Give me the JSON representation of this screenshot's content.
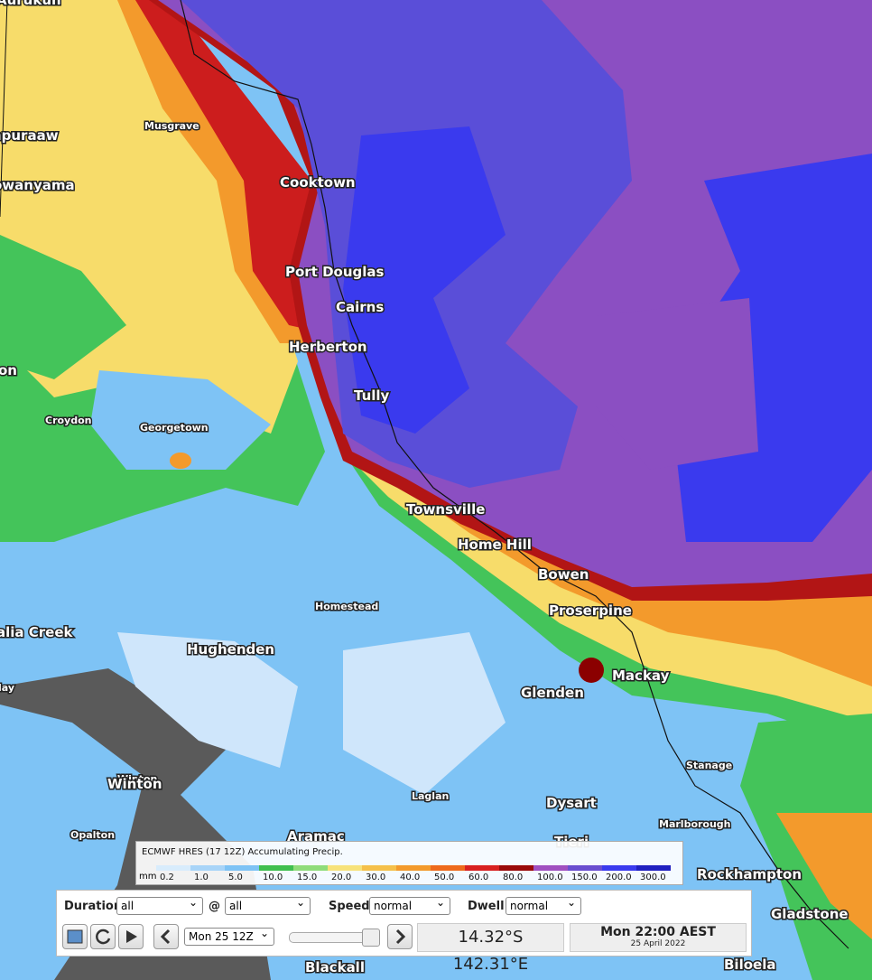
{
  "places": [
    "Aurukun",
    "mpuraaw",
    "owanyama",
    "Musgrave",
    "Cooktown",
    "Port Douglas",
    "Cairns",
    "Herberton",
    "on",
    "Tully",
    "Croydon",
    "Georgetown",
    "Townsville",
    "Home Hill",
    "Bowen",
    "Proserpine",
    "Homestead",
    "alia Creek",
    "Hughenden",
    "Mackay",
    "Glenden",
    "lay",
    "Stanage",
    "Winton",
    "Winton",
    "Laglan",
    "Dysart",
    "Opalton",
    "Marlborough",
    "Aramac",
    "Tieri",
    "Rockhampton",
    "Gladstone",
    "Blackall",
    "Biloela"
  ],
  "legend": {
    "title": "ECMWF HRES (17 12Z) Accumulating Precip.",
    "unit": "mm",
    "items": [
      {
        "label": "0.2",
        "color": "#d8ecfc"
      },
      {
        "label": "1.0",
        "color": "#a8d4f8"
      },
      {
        "label": "5.0",
        "color": "#7ec3f5"
      },
      {
        "label": "10.0",
        "color": "#3fbf4f"
      },
      {
        "label": "15.0",
        "color": "#8fdc7a"
      },
      {
        "label": "20.0",
        "color": "#f7e27a"
      },
      {
        "label": "30.0",
        "color": "#f5c04a"
      },
      {
        "label": "40.0",
        "color": "#f39a2c"
      },
      {
        "label": "50.0",
        "color": "#ee6a1c"
      },
      {
        "label": "60.0",
        "color": "#d82020"
      },
      {
        "label": "80.0",
        "color": "#9a0a0a"
      },
      {
        "label": "100.0",
        "color": "#a050c0"
      },
      {
        "label": "150.0",
        "color": "#6a4ed0"
      },
      {
        "label": "200.0",
        "color": "#3a3aee"
      },
      {
        "label": "300.0",
        "color": "#2020c0"
      }
    ]
  },
  "controls": {
    "duration_label": "Duration",
    "duration_value": "all",
    "at_label": "@",
    "at_value": "all",
    "speed_label": "Speed",
    "speed_value": "normal",
    "dwell_label": "Dwell",
    "dwell_value": "normal",
    "run_value": "Mon 25 12Z",
    "coordinates": "14.32°S 142.31°E",
    "valid_time": "Mon 22:00 AEST",
    "valid_date": "25 April 2022"
  }
}
